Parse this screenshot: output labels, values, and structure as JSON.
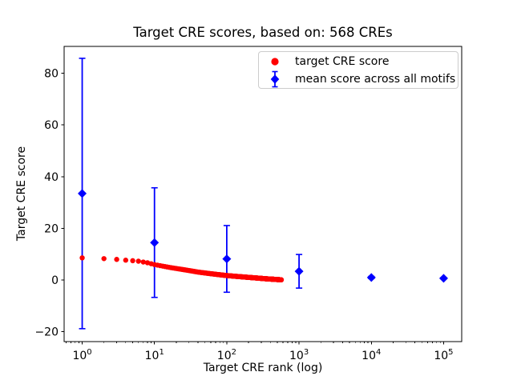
{
  "figure": {
    "title": "Target CRE scores, based on: 568 CREs",
    "xlabel": "Target CRE rank (log)",
    "ylabel": "Target CRE score"
  },
  "legend": {
    "position": "upper right",
    "items": [
      {
        "label": "target CRE score",
        "marker": "circle",
        "color": "#ff0000"
      },
      {
        "label": "mean score across all motifs",
        "marker": "diamond-errorbar",
        "color": "#0000ff"
      }
    ]
  },
  "chart_data": {
    "type": "scatter",
    "title": "Target CRE scores, based on: 568 CREs",
    "xlabel": "Target CRE rank (log)",
    "ylabel": "Target CRE score",
    "x_scale": "log",
    "xlim_log10": [
      -0.25,
      5.25
    ],
    "ylim": [
      -23.8,
      90.4
    ],
    "x_ticks": {
      "base": 10,
      "exponents": [
        0,
        1,
        2,
        3,
        4,
        5
      ]
    },
    "y_ticks": {
      "values": [
        -20,
        0,
        20,
        40,
        60,
        80
      ],
      "labels": [
        "−20",
        "0",
        "20",
        "40",
        "60",
        "80"
      ]
    },
    "grid": false,
    "legend_position": "upper right",
    "series": [
      {
        "name": "mean score across all motifs",
        "type": "errorbar",
        "marker": "diamond",
        "color": "#0000ff",
        "x": [
          1,
          10,
          100,
          1000,
          10000,
          100000
        ],
        "y": [
          33.5,
          14.5,
          8.2,
          3.4,
          1.0,
          0.7
        ],
        "yerr": [
          52.3,
          21.2,
          12.9,
          6.5,
          0.4,
          0.25
        ]
      },
      {
        "name": "target CRE score",
        "type": "scatter",
        "marker": "circle",
        "color": "#ff0000",
        "n_points": 568,
        "note": "568 points at integer ranks 1-568, monotonically decreasing; sampled values below",
        "sampled_points": {
          "rank": [
            1,
            2,
            3,
            4,
            5,
            6,
            8,
            10,
            13,
            17,
            22,
            30,
            40,
            55,
            75,
            100,
            140,
            190,
            260,
            350,
            450,
            568
          ],
          "score": [
            8.6,
            8.3,
            8.0,
            7.7,
            7.5,
            7.3,
            6.7,
            6.0,
            5.4,
            4.8,
            4.3,
            3.7,
            3.1,
            2.6,
            2.15,
            1.75,
            1.4,
            1.1,
            0.8,
            0.5,
            0.3,
            0.1
          ]
        }
      }
    ]
  }
}
